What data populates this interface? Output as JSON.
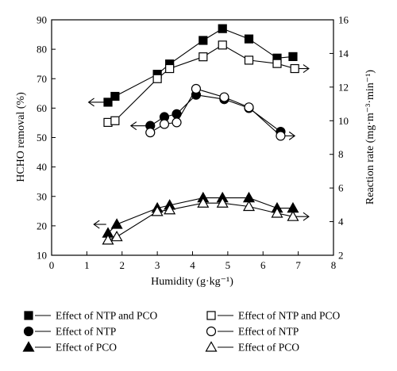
{
  "chart_data": {
    "type": "scatter",
    "title": "",
    "xlabel": "Humidity (g·kg⁻¹)",
    "ylabel_left": "HCHO removal (%)",
    "ylabel_right": "Reaction rate (mg·m⁻³·min⁻¹)",
    "xlim": [
      0,
      8
    ],
    "ylim_left": [
      10,
      90
    ],
    "ylim_right": [
      2,
      16
    ],
    "x_ticks": [
      "0",
      "1",
      "2",
      "3",
      "4",
      "5",
      "6",
      "7",
      "8"
    ],
    "y_ticks_left": [
      "10",
      "20",
      "30",
      "40",
      "50",
      "60",
      "70",
      "80",
      "90"
    ],
    "y_ticks_right": [
      "2",
      "4",
      "6",
      "8",
      "10",
      "12",
      "14",
      "16"
    ],
    "grid": false,
    "legend_position": "bottom",
    "series": [
      {
        "name": "Effect of NTP and PCO",
        "axis": "left",
        "marker": "square",
        "filled": true,
        "x": [
          1.6,
          1.8,
          3.0,
          3.35,
          4.3,
          4.85,
          5.6,
          6.4,
          6.85
        ],
        "y": [
          62,
          64,
          71.5,
          75,
          83,
          87,
          83.5,
          77,
          77.5
        ]
      },
      {
        "name": "Effect of NTP and PCO",
        "axis": "right",
        "marker": "square",
        "filled": false,
        "x": [
          1.6,
          1.8,
          3.0,
          3.35,
          4.3,
          4.85,
          5.6,
          6.4,
          6.9
        ],
        "y": [
          9.9,
          10.0,
          12.5,
          13.1,
          13.8,
          14.5,
          13.6,
          13.4,
          13.1
        ]
      },
      {
        "name": "Effect of NTP",
        "axis": "left",
        "marker": "circle",
        "filled": true,
        "x": [
          2.8,
          3.2,
          3.55,
          4.1,
          4.9,
          5.6,
          6.5
        ],
        "y": [
          54,
          57,
          58,
          64.5,
          63,
          60,
          52
        ]
      },
      {
        "name": "Effect of NTP",
        "axis": "right",
        "marker": "circle",
        "filled": false,
        "x": [
          2.8,
          3.2,
          3.55,
          4.1,
          4.9,
          5.6,
          6.5
        ],
        "y": [
          9.3,
          9.8,
          9.9,
          11.9,
          11.4,
          10.8,
          9.1
        ]
      },
      {
        "name": "Effect of PCO",
        "axis": "left",
        "marker": "triangle",
        "filled": true,
        "x": [
          1.6,
          1.85,
          3.0,
          3.35,
          4.3,
          4.85,
          5.6,
          6.4,
          6.85
        ],
        "y": [
          17.5,
          20.5,
          26,
          27,
          29.5,
          29.5,
          29.5,
          26,
          26
        ]
      },
      {
        "name": "Effect of PCO",
        "axis": "right",
        "marker": "triangle",
        "filled": false,
        "x": [
          1.6,
          1.85,
          3.0,
          3.35,
          4.3,
          4.85,
          5.6,
          6.4,
          6.85
        ],
        "y": [
          2.9,
          3.1,
          4.6,
          4.7,
          5.1,
          5.1,
          4.9,
          4.5,
          4.3
        ]
      }
    ],
    "direction_arrows": [
      {
        "series": 0,
        "points": "left",
        "from_x": 1.55,
        "to_x": 1.05,
        "y_axis": "left",
        "y": 62
      },
      {
        "series": 1,
        "points": "right",
        "from_x": 6.95,
        "to_x": 7.3,
        "y_axis": "right",
        "y": 13.1
      },
      {
        "series": 2,
        "points": "left",
        "from_x": 2.72,
        "to_x": 2.25,
        "y_axis": "left",
        "y": 54
      },
      {
        "series": 3,
        "points": "right",
        "from_x": 6.58,
        "to_x": 6.9,
        "y_axis": "right",
        "y": 9.1
      },
      {
        "series": 4,
        "points": "left",
        "from_x": 1.55,
        "to_x": 1.2,
        "y_axis": "left",
        "y": 20.5
      },
      {
        "series": 5,
        "points": "right",
        "from_x": 6.92,
        "to_x": 7.3,
        "y_axis": "right",
        "y": 4.3
      }
    ]
  },
  "legend": {
    "items": [
      {
        "label": "Effect of NTP and PCO",
        "marker": "square",
        "filled": true
      },
      {
        "label": "Effect of NTP and PCO",
        "marker": "square",
        "filled": false
      },
      {
        "label": "Effect of NTP",
        "marker": "circle",
        "filled": true
      },
      {
        "label": "Effect of NTP",
        "marker": "circle",
        "filled": false
      },
      {
        "label": "Effect of PCO",
        "marker": "triangle",
        "filled": true
      },
      {
        "label": "Effect of PCO",
        "marker": "triangle",
        "filled": false
      }
    ]
  },
  "colors": {
    "ink": "#000000",
    "background": "#ffffff"
  }
}
